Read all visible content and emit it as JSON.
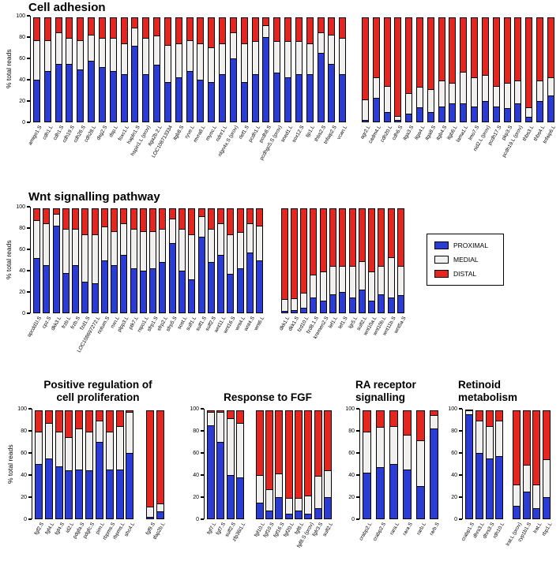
{
  "colors": {
    "proximal": "#2b3cd5",
    "medial": "#f1f0ee",
    "distal": "#e4261f"
  },
  "legend": {
    "items": [
      {
        "label": "PROXIMAL",
        "key": "proximal"
      },
      {
        "label": "MEDIAL",
        "key": "medial"
      },
      {
        "label": "DISTAL",
        "key": "distal"
      }
    ]
  },
  "chart_data": [
    {
      "id": "cell-adhesion",
      "type": "stacked-bar",
      "title": "Cell adhesion",
      "ylabel": "% total reads",
      "ylim": [
        0,
        100
      ],
      "y_ticks": [
        0,
        20,
        40,
        60,
        80,
        100
      ],
      "series": [
        "PROXIMAL",
        "MEDIAL",
        "DISTAL"
      ],
      "bars_format": [
        "label",
        "proximal",
        "medial",
        "distal"
      ],
      "gap_after": 29,
      "bars": [
        [
          "amigo1.S",
          40,
          38,
          22
        ],
        [
          "cdh1.L",
          48,
          30,
          22
        ],
        [
          "cdh1.S",
          55,
          30,
          15
        ],
        [
          "cdh19.S",
          55,
          25,
          20
        ],
        [
          "cdh26.S",
          50,
          28,
          22
        ],
        [
          "cdh28.L",
          58,
          25,
          17
        ],
        [
          "dsg2.S",
          52,
          28,
          20
        ],
        [
          "dsp.L",
          48,
          32,
          20
        ],
        [
          "foxc1.L",
          45,
          30,
          25
        ],
        [
          "hapln1.S",
          72,
          18,
          10
        ],
        [
          "hspin1.L (prov)",
          45,
          35,
          20
        ],
        [
          "itga2b.2.L",
          54,
          28,
          18
        ],
        [
          "LOC108713334",
          38,
          35,
          27
        ],
        [
          "itgb8.S",
          42,
          33,
          25
        ],
        [
          "ryve.L",
          48,
          30,
          22
        ],
        [
          "mvra8.L",
          40,
          35,
          25
        ],
        [
          "myoc.L",
          38,
          33,
          29
        ],
        [
          "ndnr1.L",
          45,
          30,
          25
        ],
        [
          "nlgn4x.S (prov)",
          60,
          25,
          15
        ],
        [
          "rlef1.S",
          38,
          37,
          25
        ],
        [
          "pcdh1.L",
          45,
          32,
          23
        ],
        [
          "pcdh8.S",
          80,
          12,
          8
        ],
        [
          "pcdhgc5.S (prov)",
          47,
          30,
          23
        ],
        [
          "sned1.L",
          42,
          35,
          23
        ],
        [
          "sox12.S",
          45,
          32,
          23
        ],
        [
          "tjp1.L",
          45,
          30,
          25
        ],
        [
          "thbs2.S",
          65,
          20,
          15
        ],
        [
          "tnfaip2.S",
          55,
          28,
          17
        ],
        [
          "vcan.L",
          45,
          35,
          20
        ],
        [
          "agr2.L",
          2,
          20,
          78
        ],
        [
          "cadm4.L",
          23,
          20,
          57
        ],
        [
          "cdh20.L",
          10,
          25,
          65
        ],
        [
          "cdh6.S",
          2,
          5,
          93
        ],
        [
          "itga3.S",
          8,
          20,
          72
        ],
        [
          "itga4.L",
          14,
          20,
          66
        ],
        [
          "itga8.S",
          10,
          22,
          68
        ],
        [
          "itgb4.S",
          15,
          25,
          60
        ],
        [
          "itgb6.L",
          18,
          20,
          62
        ],
        [
          "lama1.L",
          18,
          30,
          52
        ],
        [
          "lmo7.S",
          15,
          28,
          57
        ],
        [
          "nid2.L (prov)",
          20,
          25,
          55
        ],
        [
          "pcdh17.S",
          15,
          20,
          65
        ],
        [
          "pkp3.S",
          13,
          25,
          62
        ],
        [
          "pcdh19.L (prov)",
          18,
          22,
          60
        ],
        [
          "thbs3.L",
          5,
          10,
          85
        ],
        [
          "thbs4.L",
          20,
          20,
          60
        ],
        [
          "tnfaip6.L",
          25,
          18,
          57
        ]
      ]
    },
    {
      "id": "wnt-signalling",
      "type": "stacked-bar",
      "title": "Wnt signalling pathway",
      "ylabel": "% total reads",
      "ylim": [
        0,
        100
      ],
      "y_ticks": [
        0,
        20,
        40,
        60,
        80,
        100
      ],
      "series": [
        "PROXIMAL",
        "MEDIAL",
        "DISTAL"
      ],
      "bars_format": [
        "label",
        "proximal",
        "medial",
        "distal"
      ],
      "gap_after": 24,
      "bars": [
        [
          "apcdd1l.S",
          52,
          36,
          12
        ],
        [
          "cpz.S",
          45,
          40,
          15
        ],
        [
          "dkk3.L",
          82,
          12,
          6
        ],
        [
          "frzb.L",
          38,
          42,
          20
        ],
        [
          "frzb.S",
          45,
          35,
          20
        ],
        [
          "fzd1.S",
          30,
          45,
          25
        ],
        [
          "LOC108697272.L",
          28,
          47,
          25
        ],
        [
          "notum.S",
          50,
          32,
          18
        ],
        [
          "nxn.L",
          45,
          33,
          22
        ],
        [
          "plpp3.L",
          55,
          30,
          15
        ],
        [
          "ptk7.L",
          42,
          38,
          20
        ],
        [
          "rspo1.L",
          40,
          38,
          22
        ],
        [
          "sfrp1.S",
          42,
          36,
          22
        ],
        [
          "sfrp2.L",
          48,
          32,
          20
        ],
        [
          "sfrp5.S",
          66,
          24,
          10
        ],
        [
          "sost.L",
          40,
          40,
          20
        ],
        [
          "sulf1.L",
          32,
          43,
          25
        ],
        [
          "sulf1.S",
          72,
          20,
          8
        ],
        [
          "sulf2.S",
          48,
          32,
          20
        ],
        [
          "wnt11.L",
          55,
          30,
          15
        ],
        [
          "wnt16.S",
          37,
          38,
          25
        ],
        [
          "wnt4.L",
          42,
          35,
          23
        ],
        [
          "wnt4.S",
          57,
          28,
          15
        ],
        [
          "wnt6.L",
          50,
          33,
          17
        ],
        [
          "dkk1.L",
          2,
          12,
          86
        ],
        [
          "dkk1.S",
          3,
          12,
          85
        ],
        [
          "fzd10.L",
          5,
          15,
          80
        ],
        [
          "fzd8.1.S",
          15,
          22,
          63
        ],
        [
          "kremen2.S",
          12,
          28,
          60
        ],
        [
          "lef1.L",
          18,
          27,
          55
        ],
        [
          "lef1.S",
          20,
          25,
          55
        ],
        [
          "lgr5.L",
          15,
          30,
          55
        ],
        [
          "sulf2.L",
          22,
          28,
          50
        ],
        [
          "wnt10a.L",
          12,
          28,
          60
        ],
        [
          "wnt10b.L",
          18,
          27,
          55
        ],
        [
          "wnt11b.S",
          15,
          38,
          47
        ],
        [
          "wnt5a.S",
          17,
          28,
          55
        ]
      ]
    },
    {
      "id": "positive-regulation-cell-proliferation",
      "type": "stacked-bar",
      "title": "Positive regulation of",
      "title2": "cell proliferation",
      "ylabel": "% total reads",
      "ylim": [
        0,
        100
      ],
      "y_ticks": [
        0,
        20,
        40,
        60,
        80,
        100
      ],
      "series": [
        "PROXIMAL",
        "MEDIAL",
        "DISTAL"
      ],
      "bars_format": [
        "label",
        "proximal",
        "medial",
        "distal"
      ],
      "gap_after": 10,
      "bars": [
        [
          "fgf2.S",
          50,
          30,
          20
        ],
        [
          "fgf4.L",
          55,
          33,
          12
        ],
        [
          "fgf4.S",
          48,
          32,
          20
        ],
        [
          "id2.L",
          44,
          31,
          25
        ],
        [
          "pdgfa.S",
          45,
          38,
          17
        ],
        [
          "pdgfc.S",
          44,
          36,
          20
        ],
        [
          "pim.L",
          70,
          20,
          10
        ],
        [
          "rbpms.S",
          45,
          35,
          20
        ],
        [
          "rbpms.L",
          45,
          40,
          15
        ],
        [
          "shc4.L",
          60,
          38,
          2
        ],
        [
          "fgf9.S",
          2,
          10,
          88
        ],
        [
          "tfap2b.L",
          7,
          8,
          85
        ]
      ]
    },
    {
      "id": "response-to-fgf",
      "type": "stacked-bar",
      "title": "Response to FGF",
      "ylabel": "",
      "ylim": [
        0,
        100
      ],
      "y_ticks": [
        0,
        20,
        40,
        60,
        80,
        100
      ],
      "series": [
        "PROXIMAL",
        "MEDIAL",
        "DISTAL"
      ],
      "bars_format": [
        "label",
        "proximal",
        "medial",
        "distal"
      ],
      "gap_after": 4,
      "bars": [
        [
          "fgf7.L",
          85,
          13,
          2
        ],
        [
          "fgf7.S",
          70,
          28,
          2
        ],
        [
          "sulf2.S",
          40,
          52,
          8
        ],
        [
          "zfp36l1.L",
          38,
          50,
          12
        ],
        [
          "fgf10.L",
          15,
          26,
          59
        ],
        [
          "fgf10.S",
          8,
          20,
          72
        ],
        [
          "fgf16.S",
          20,
          22,
          58
        ],
        [
          "fgf20.L",
          5,
          15,
          80
        ],
        [
          "fgf8.L",
          8,
          12,
          80
        ],
        [
          "fgf8.S (prov)",
          5,
          17,
          78
        ],
        [
          "fgfr3.S",
          10,
          30,
          60
        ],
        [
          "sulf2.L",
          20,
          25,
          55
        ]
      ]
    },
    {
      "id": "ra-receptor-signalling",
      "type": "stacked-bar",
      "title": "RA receptor",
      "title2": "signalling",
      "ylabel": "",
      "ylim": [
        0,
        100
      ],
      "y_ticks": [
        0,
        20,
        40,
        60,
        80,
        100
      ],
      "series": [
        "PROXIMAL",
        "MEDIAL",
        "DISTAL"
      ],
      "bars_format": [
        "label",
        "proximal",
        "medial",
        "distal"
      ],
      "gap_after": null,
      "bars": [
        [
          "crabp2.L",
          42,
          38,
          20
        ],
        [
          "crabp2.S",
          47,
          37,
          16
        ],
        [
          "rara.L",
          50,
          35,
          15
        ],
        [
          "rara.S",
          45,
          32,
          23
        ],
        [
          "rarb.L",
          30,
          42,
          28
        ],
        [
          "rarb.S",
          82,
          13,
          5
        ]
      ]
    },
    {
      "id": "retinoid-metabolism",
      "type": "stacked-bar",
      "title": "Retinoid",
      "title2": "metabolism",
      "ylabel": "",
      "ylim": [
        0,
        100
      ],
      "y_ticks": [
        0,
        20,
        40,
        60,
        80,
        100
      ],
      "series": [
        "PROXIMAL",
        "MEDIAL",
        "DISTAL"
      ],
      "bars_format": [
        "label",
        "proximal",
        "medial",
        "distal"
      ],
      "gap_after": 4,
      "bars": [
        [
          "crabp1.S",
          95,
          4,
          1
        ],
        [
          "dhrs3.L",
          60,
          30,
          10
        ],
        [
          "dhrs3.S",
          55,
          30,
          15
        ],
        [
          "rdh10.L",
          57,
          33,
          10
        ],
        [
          "lrat.L (prov)",
          12,
          20,
          68
        ],
        [
          "cyp1b1.S",
          25,
          25,
          50
        ],
        [
          "lrat.L",
          10,
          22,
          68
        ],
        [
          "rbp1.L",
          20,
          35,
          45
        ]
      ]
    }
  ]
}
